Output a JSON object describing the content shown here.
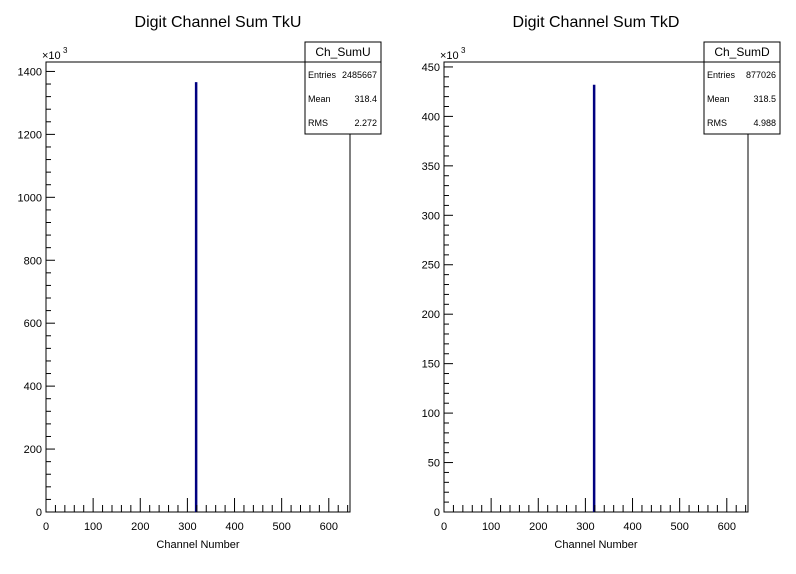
{
  "chart_data": [
    {
      "type": "bar",
      "title": "Digit Channel Sum TkU",
      "xlabel": "Channel Number",
      "ylabel": "",
      "y_multiplier": "×10",
      "y_multiplier_exp": "3",
      "xlim": [
        0,
        645
      ],
      "ylim": [
        0,
        1430
      ],
      "x_ticks": [
        0,
        100,
        200,
        300,
        400,
        500,
        600
      ],
      "y_ticks": [
        0,
        200,
        400,
        600,
        800,
        1000,
        1200,
        1400
      ],
      "bins": [
        {
          "x": 318,
          "value": 1366
        }
      ],
      "bar_color": "#000080",
      "stats": {
        "name": "Ch_SumU",
        "rows": [
          {
            "key": "Entries",
            "value": "2485667"
          },
          {
            "key": "Mean",
            "value": "318.4"
          },
          {
            "key": "RMS",
            "value": "2.272"
          }
        ]
      }
    },
    {
      "type": "bar",
      "title": "Digit Channel Sum TkD",
      "xlabel": "Channel Number",
      "ylabel": "",
      "y_multiplier": "×10",
      "y_multiplier_exp": "3",
      "xlim": [
        0,
        645
      ],
      "ylim": [
        0,
        455
      ],
      "x_ticks": [
        0,
        100,
        200,
        300,
        400,
        500,
        600
      ],
      "y_ticks": [
        0,
        50,
        100,
        150,
        200,
        250,
        300,
        350,
        400,
        450
      ],
      "bins": [
        {
          "x": 318,
          "value": 432
        }
      ],
      "bar_color": "#000080",
      "stats": {
        "name": "Ch_SumD",
        "rows": [
          {
            "key": "Entries",
            "value": "877026"
          },
          {
            "key": "Mean",
            "value": "318.5"
          },
          {
            "key": "RMS",
            "value": "4.988"
          }
        ]
      }
    }
  ]
}
